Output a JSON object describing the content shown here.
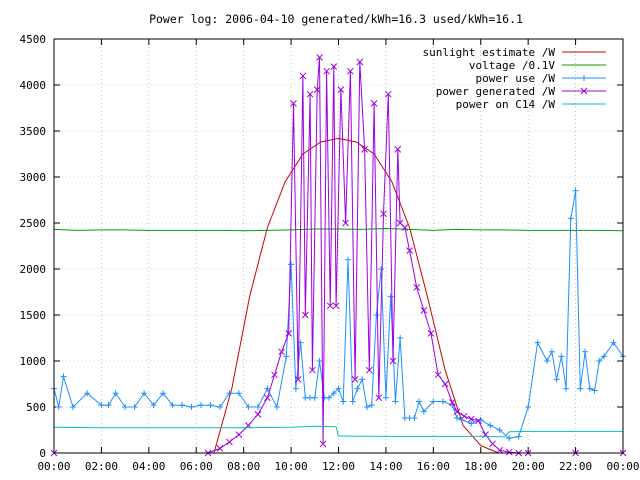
{
  "chart_data": {
    "type": "line",
    "title": "Power log: 2006-04-10 generated/kWh=16.3 used/kWh=16.1",
    "xlabel": "",
    "ylabel": "",
    "x_ticks": [
      "00:00",
      "02:00",
      "04:00",
      "06:00",
      "08:00",
      "10:00",
      "12:00",
      "14:00",
      "16:00",
      "18:00",
      "20:00",
      "22:00",
      "00:00"
    ],
    "y_ticks": [
      "0",
      "500",
      "1000",
      "1500",
      "2000",
      "2500",
      "3000",
      "3500",
      "4000",
      "4500"
    ],
    "xlim_hours": [
      0,
      24
    ],
    "ylim": [
      0,
      4500
    ],
    "grid": true,
    "legend_position": "top-right",
    "series": [
      {
        "name": "sunlight estimate /W",
        "color": "#cc0000",
        "style": "line",
        "x": [
          6.75,
          7.5,
          8.25,
          9.0,
          9.75,
          10.5,
          11.25,
          12.0,
          12.75,
          13.5,
          14.25,
          15.0,
          15.75,
          16.5,
          17.25,
          18.0,
          18.75,
          19.0
        ],
        "y": [
          0,
          700,
          1700,
          2450,
          2950,
          3250,
          3380,
          3420,
          3380,
          3250,
          2950,
          2450,
          1700,
          900,
          300,
          80,
          0,
          0
        ]
      },
      {
        "name": "voltage /0.1V",
        "color": "#00a000",
        "style": "line",
        "x": [
          0,
          1,
          2,
          3,
          4,
          5,
          6,
          7,
          8,
          9,
          10,
          11,
          12,
          13,
          14,
          15,
          16,
          17,
          18,
          19,
          20,
          21,
          22,
          23,
          24
        ],
        "y": [
          2430,
          2420,
          2425,
          2425,
          2420,
          2420,
          2420,
          2420,
          2415,
          2420,
          2425,
          2435,
          2435,
          2430,
          2440,
          2430,
          2420,
          2430,
          2425,
          2425,
          2420,
          2420,
          2420,
          2420,
          2415
        ]
      },
      {
        "name": "power use /W",
        "color": "#1e90ff",
        "style": "linespoints",
        "x": [
          0,
          0.2,
          0.4,
          0.8,
          1.4,
          2.0,
          2.3,
          2.6,
          3.0,
          3.4,
          3.8,
          4.2,
          4.6,
          5.0,
          5.4,
          5.8,
          6.2,
          6.6,
          7.0,
          7.4,
          7.8,
          8.2,
          8.6,
          9.0,
          9.4,
          9.8,
          10.0,
          10.2,
          10.4,
          10.6,
          10.8,
          11.0,
          11.2,
          11.4,
          11.6,
          11.8,
          12.0,
          12.2,
          12.4,
          12.6,
          12.8,
          13.0,
          13.2,
          13.4,
          13.6,
          13.8,
          14.0,
          14.2,
          14.4,
          14.6,
          14.8,
          15.0,
          15.2,
          15.4,
          15.6,
          16.0,
          16.4,
          16.8,
          17.0,
          17.2,
          17.6,
          18.0,
          18.4,
          18.8,
          19.2,
          19.6,
          20.0,
          20.4,
          20.8,
          21.0,
          21.2,
          21.4,
          21.6,
          21.8,
          22.0,
          22.2,
          22.4,
          22.6,
          22.8,
          23.0,
          23.2,
          23.6,
          24.0
        ],
        "y": [
          700,
          500,
          830,
          500,
          650,
          520,
          520,
          650,
          500,
          500,
          650,
          520,
          650,
          520,
          520,
          500,
          520,
          520,
          500,
          650,
          650,
          500,
          500,
          700,
          500,
          1050,
          2050,
          700,
          1200,
          600,
          600,
          600,
          1000,
          600,
          600,
          650,
          700,
          560,
          2100,
          560,
          700,
          800,
          500,
          520,
          1500,
          2000,
          600,
          1700,
          560,
          1250,
          380,
          380,
          380,
          560,
          450,
          560,
          560,
          520,
          380,
          360,
          320,
          360,
          300,
          250,
          160,
          180,
          500,
          1200,
          1000,
          1100,
          800,
          1050,
          700,
          2550,
          2850,
          700,
          1100,
          700,
          680,
          1000,
          1050,
          1200,
          1050
        ]
      },
      {
        "name": "power generated /W",
        "color": "#a000e0",
        "style": "linespoints",
        "x": [
          0,
          6.5,
          7.0,
          7.4,
          7.8,
          8.2,
          8.6,
          9.0,
          9.3,
          9.6,
          9.9,
          10.1,
          10.3,
          10.5,
          10.6,
          10.8,
          10.9,
          11.1,
          11.2,
          11.35,
          11.5,
          11.65,
          11.8,
          11.9,
          12.1,
          12.3,
          12.5,
          12.7,
          12.9,
          13.1,
          13.3,
          13.5,
          13.7,
          13.9,
          14.1,
          14.3,
          14.5,
          14.6,
          14.8,
          15.0,
          15.3,
          15.6,
          15.9,
          16.2,
          16.5,
          16.8,
          17.0,
          17.3,
          17.6,
          17.9,
          18.2,
          18.5,
          18.8,
          19.2,
          19.6,
          20.0,
          22.0,
          24.0
        ],
        "y": [
          0,
          0,
          50,
          120,
          200,
          300,
          420,
          600,
          850,
          1100,
          1300,
          3800,
          800,
          4100,
          1500,
          3900,
          900,
          3950,
          4300,
          100,
          4150,
          1600,
          4200,
          1600,
          3950,
          2500,
          4150,
          800,
          4250,
          3300,
          900,
          3800,
          600,
          2600,
          3900,
          1000,
          3300,
          2500,
          2450,
          2200,
          1800,
          1550,
          1300,
          850,
          750,
          550,
          450,
          400,
          370,
          350,
          200,
          100,
          30,
          10,
          0,
          0,
          0,
          0
        ]
      },
      {
        "name": "power on C14 /W",
        "color": "#00c0c0",
        "style": "line",
        "x": [
          0,
          2,
          4,
          6,
          8,
          10,
          11,
          11.9,
          12.0,
          14,
          16,
          18,
          19.0,
          19.2,
          20,
          22,
          24
        ],
        "y": [
          280,
          275,
          275,
          275,
          275,
          280,
          290,
          285,
          185,
          180,
          180,
          180,
          175,
          230,
          235,
          235,
          235
        ]
      }
    ]
  }
}
